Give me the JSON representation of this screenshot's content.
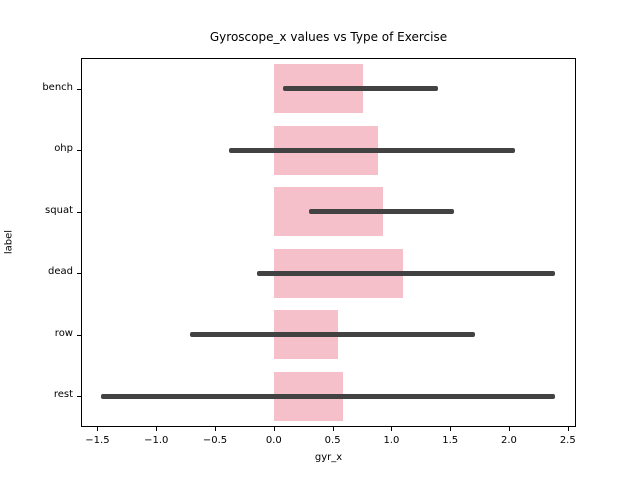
{
  "chart_data": {
    "type": "bar",
    "orientation": "horizontal",
    "title": "Gyroscope_x values vs Type of Exercise",
    "xlabel": "gyr_x",
    "ylabel": "label",
    "categories": [
      "bench",
      "ohp",
      "squat",
      "dead",
      "row",
      "rest"
    ],
    "series": [
      {
        "name": "mean gyr_x",
        "values": [
          0.76,
          0.89,
          0.93,
          1.1,
          0.55,
          0.59
        ],
        "error_low": [
          0.08,
          -0.38,
          0.3,
          -0.14,
          -0.71,
          -1.47
        ],
        "error_high": [
          1.4,
          2.05,
          1.53,
          2.39,
          1.71,
          2.39
        ]
      }
    ],
    "bar_start": 0.0,
    "xlim": [
      -1.64,
      2.57
    ],
    "xticks": [
      -1.5,
      -1.0,
      -0.5,
      0.0,
      0.5,
      1.0,
      1.5,
      2.0,
      2.5
    ],
    "xtick_labels": [
      "−1.5",
      "−1.0",
      "−0.5",
      "0.0",
      "0.5",
      "1.0",
      "1.5",
      "2.0",
      "2.5"
    ],
    "grid": false,
    "legend": "none",
    "bar_color": "#f6c0cb",
    "error_color": "#424242",
    "background_color": "#ffffff",
    "spine_color": "#000000"
  }
}
